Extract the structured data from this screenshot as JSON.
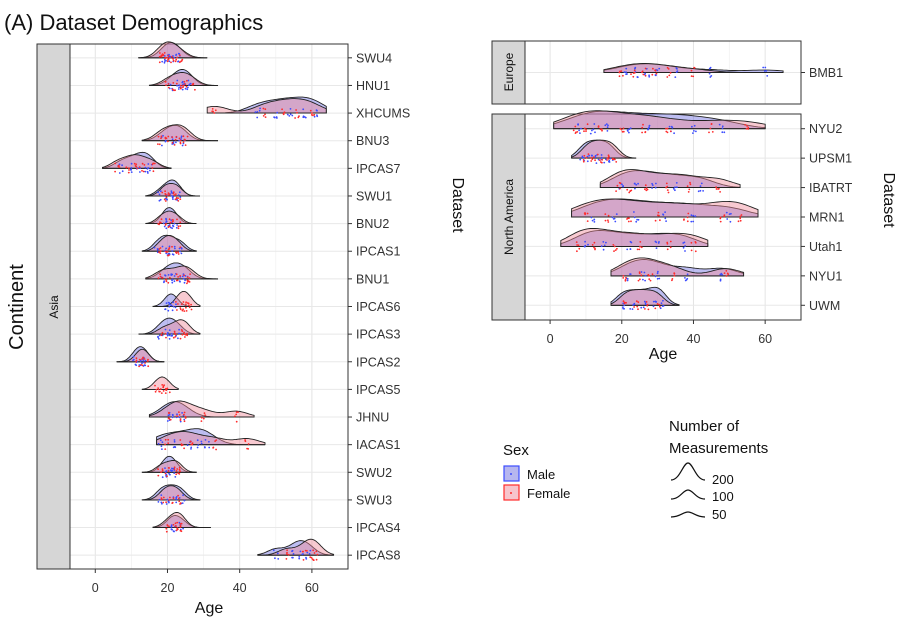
{
  "title": "(A) Dataset Demographics",
  "colors": {
    "male": "#3b4cff",
    "female": "#ff2b2b",
    "male_fill": "#6d6de0",
    "female_fill": "#f08a9a",
    "grid": "#ebebeb",
    "strip": "#d6d6d6"
  },
  "chart_data": [
    {
      "type": "ridgeline",
      "facet": "Asia",
      "xlabel": "Age",
      "ylabel": "Dataset",
      "facet_label": "Continent",
      "xlim": [
        -7,
        70
      ],
      "xticks": [
        0,
        20,
        40,
        60
      ],
      "grid": true,
      "datasets": [
        {
          "name": "SWU4",
          "male": [
            19,
            20,
            21,
            22,
            23
          ],
          "female": [
            18,
            19,
            20,
            21,
            22,
            24
          ],
          "range": [
            12,
            31
          ]
        },
        {
          "name": "HNU1",
          "male": [
            21,
            23,
            24,
            25,
            26
          ],
          "female": [
            20,
            22,
            24,
            25,
            27
          ],
          "range": [
            15,
            34
          ]
        },
        {
          "name": "XHCUMS",
          "male": [
            45,
            50,
            54,
            58,
            61
          ],
          "female": [
            33,
            47,
            52,
            56,
            60
          ],
          "range": [
            31,
            64
          ]
        },
        {
          "name": "BNU3",
          "male": [
            19,
            21,
            23,
            24
          ],
          "female": [
            18,
            20,
            22,
            24,
            25
          ],
          "range": [
            13,
            34
          ]
        },
        {
          "name": "IPCAS7",
          "male": [
            7,
            10,
            12,
            14,
            15
          ],
          "female": [
            6,
            9,
            11,
            13,
            16
          ],
          "range": [
            2,
            21
          ]
        },
        {
          "name": "SWU1",
          "male": [
            18,
            20,
            21,
            22,
            23
          ],
          "female": [
            19,
            20,
            22,
            23
          ],
          "range": [
            14,
            29
          ]
        },
        {
          "name": "BNU2",
          "male": [
            19,
            20,
            21,
            22
          ],
          "female": [
            18,
            20,
            21,
            23
          ],
          "range": [
            14,
            28
          ]
        },
        {
          "name": "IPCAS1",
          "male": [
            17,
            19,
            20,
            22,
            24
          ],
          "female": [
            18,
            20,
            21,
            23
          ],
          "range": [
            13,
            28
          ]
        },
        {
          "name": "BNU1",
          "male": [
            19,
            21,
            22,
            24,
            25
          ],
          "female": [
            18,
            20,
            23,
            25,
            26
          ],
          "range": [
            14,
            34
          ]
        },
        {
          "name": "IPCAS6",
          "male": [
            20,
            21,
            22
          ],
          "female": [
            23,
            24,
            25,
            26
          ],
          "range": [
            16,
            29
          ]
        },
        {
          "name": "IPCAS3",
          "male": [
            18,
            20,
            21,
            23
          ],
          "female": [
            19,
            22,
            24,
            25
          ],
          "range": [
            12,
            29
          ]
        },
        {
          "name": "IPCAS2",
          "male": [
            11,
            12,
            13,
            14
          ],
          "female": [
            12,
            13,
            14
          ],
          "range": [
            6,
            19
          ]
        },
        {
          "name": "IPCAS5",
          "male": [],
          "female": [
            17,
            18,
            19,
            20
          ],
          "range": [
            13,
            23
          ]
        },
        {
          "name": "JHNU",
          "male": [
            20,
            22,
            24
          ],
          "female": [
            21,
            23,
            25,
            30,
            39
          ],
          "range": [
            15,
            44
          ]
        },
        {
          "name": "IACAS1",
          "male": [
            18,
            22,
            26,
            29,
            31
          ],
          "female": [
            20,
            24,
            27,
            33,
            42
          ],
          "range": [
            17,
            47
          ]
        },
        {
          "name": "SWU2",
          "male": [
            19,
            20,
            21,
            22
          ],
          "female": [
            18,
            20,
            22,
            23
          ],
          "range": [
            13,
            28
          ]
        },
        {
          "name": "SWU3",
          "male": [
            18,
            20,
            22,
            24
          ],
          "female": [
            19,
            21,
            23
          ],
          "range": [
            13,
            29
          ]
        },
        {
          "name": "IPCAS4",
          "male": [
            21,
            22,
            24
          ],
          "female": [
            20,
            22,
            23,
            24
          ],
          "range": [
            16,
            32
          ]
        },
        {
          "name": "IPCAS8",
          "male": [
            50,
            55,
            57,
            59
          ],
          "female": [
            53,
            58,
            60,
            61
          ],
          "range": [
            45,
            66
          ]
        }
      ]
    },
    {
      "type": "ridgeline",
      "facet": "Europe",
      "xlabel": "",
      "ylabel": "Dataset",
      "xlim": [
        -7,
        70
      ],
      "grid": true,
      "datasets": [
        {
          "name": "BMB1",
          "male": [
            21,
            24,
            27,
            30,
            35,
            45,
            60
          ],
          "female": [
            20,
            23,
            26,
            29,
            33,
            40
          ],
          "range": [
            15,
            65
          ]
        }
      ]
    },
    {
      "type": "ridgeline",
      "facet": "North America",
      "xlabel": "Age",
      "ylabel": "Dataset",
      "xlim": [
        -7,
        70
      ],
      "xticks": [
        0,
        20,
        40,
        60
      ],
      "grid": true,
      "datasets": [
        {
          "name": "NYU2",
          "male": [
            8,
            12,
            16,
            22,
            28,
            34,
            40,
            48
          ],
          "female": [
            7,
            10,
            14,
            20,
            26,
            33,
            45,
            55
          ],
          "range": [
            1,
            60
          ]
        },
        {
          "name": "UPSM1",
          "male": [
            9,
            11,
            13,
            15,
            17
          ],
          "female": [
            10,
            12,
            14,
            16,
            18
          ],
          "range": [
            6,
            24
          ]
        },
        {
          "name": "IBATRT",
          "male": [
            20,
            24,
            29,
            35,
            42
          ],
          "female": [
            19,
            22,
            27,
            33,
            39,
            47
          ],
          "range": [
            14,
            53
          ]
        },
        {
          "name": "MRN1",
          "male": [
            12,
            18,
            24,
            32,
            40,
            50
          ],
          "female": [
            10,
            16,
            22,
            30,
            38,
            48,
            53
          ],
          "range": [
            6,
            58
          ]
        },
        {
          "name": "Utah1",
          "male": [
            10,
            15,
            22,
            30,
            37
          ],
          "female": [
            8,
            12,
            18,
            25,
            33,
            40
          ],
          "range": [
            3,
            44
          ]
        },
        {
          "name": "NYU1",
          "male": [
            22,
            26,
            30,
            38,
            48
          ],
          "female": [
            21,
            25,
            28,
            34,
            49
          ],
          "range": [
            17,
            54
          ]
        },
        {
          "name": "UWM",
          "male": [
            20,
            23,
            26,
            29,
            31
          ],
          "female": [
            21,
            24,
            27,
            30
          ],
          "range": [
            17,
            36
          ]
        }
      ]
    }
  ],
  "legend_sex": {
    "title": "Sex",
    "items": [
      {
        "label": "Male"
      },
      {
        "label": "Female"
      }
    ]
  },
  "legend_count": {
    "title_line1": "Number of",
    "title_line2": "Measurements",
    "items": [
      {
        "label": "200"
      },
      {
        "label": "100"
      },
      {
        "label": "50"
      }
    ]
  }
}
